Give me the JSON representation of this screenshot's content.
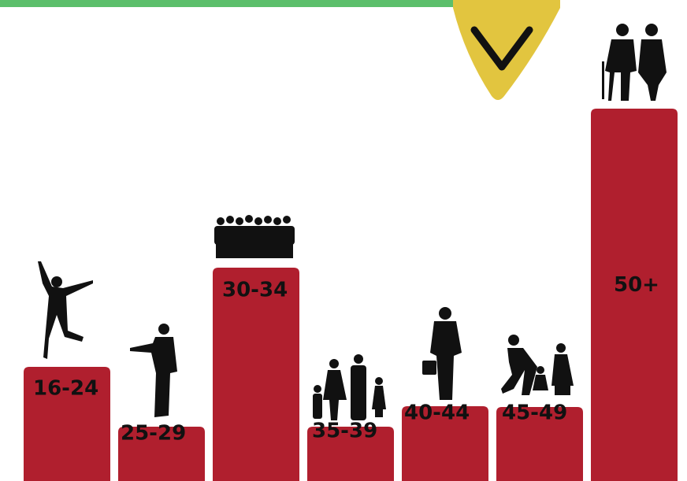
{
  "chart_data": {
    "type": "bar",
    "categories": [
      "16-24",
      "25-29",
      "30-34",
      "35-39",
      "40-44",
      "45-49",
      "50+"
    ],
    "values": [
      145,
      69,
      271,
      69,
      95,
      94,
      473
    ],
    "color": "#b01f2e"
  }
}
